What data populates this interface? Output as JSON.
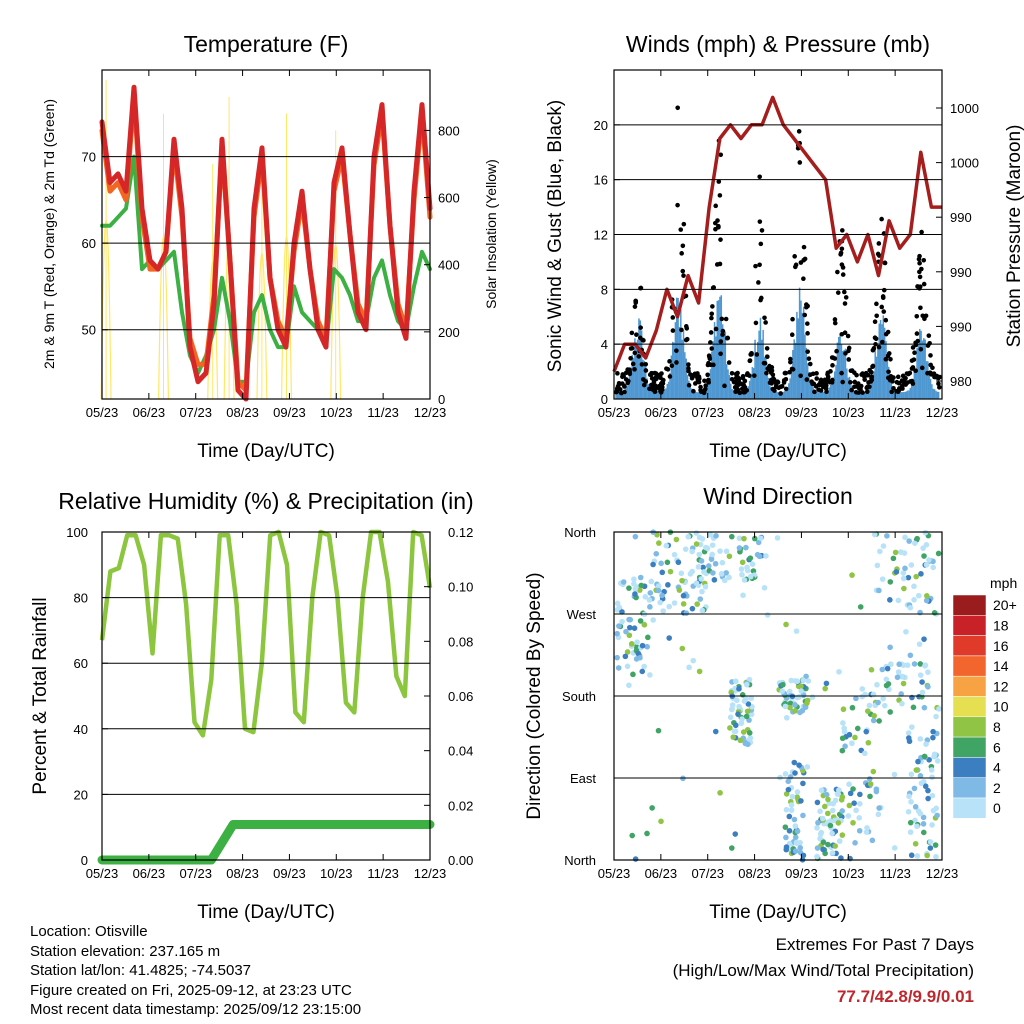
{
  "panels": {
    "temperature": {
      "title": "Temperature (F)",
      "ylabel_left": "2m & 9m T (Red, Orange) & 2m Td (Green)",
      "ylabel_right": "Solar Insolation (Yellow)",
      "xlabel": "Time (Day/UTC)"
    },
    "winds": {
      "title": "Winds (mph) & Pressure (mb)",
      "ylabel_left": "Sonic Wind & Gust (Blue, Black)",
      "ylabel_right": "Station Pressure (Maroon)",
      "xlabel": "Time (Day/UTC)"
    },
    "humidity": {
      "title": "Relative Humidity (%) & Precipitation (in)",
      "ylabel_left": "Percent & Total Rainfall",
      "xlabel": "Time (Day/UTC)"
    },
    "direction": {
      "title": "Wind Direction",
      "ylabel_left": "Direction (Colored By Speed)",
      "xlabel": "Time (Day/UTC)"
    }
  },
  "info": {
    "location": "Location: Otisville",
    "elevation": "Station elevation: 237.165 m",
    "latlon": "Station lat/lon: 41.4825; -74.5037",
    "created": "Figure created on Fri, 2025-09-12, at 23:23 UTC",
    "recent": "Most recent data timestamp: 2025/09/12 23:15:00"
  },
  "extremes": {
    "line1": "Extremes For Past 7 Days",
    "line2": "(High/Low/Max Wind/Total Precipitation)",
    "values": "77.7/42.8/9.9/0.01"
  },
  "chart_data": [
    {
      "type": "line",
      "title": "Temperature (F)",
      "x_ticks": [
        "05/23",
        "06/23",
        "07/23",
        "08/23",
        "09/23",
        "10/23",
        "11/23",
        "12/23"
      ],
      "ylim": [
        42,
        80
      ],
      "y_ticks": [
        "50",
        "60",
        "70"
      ],
      "y2lim": [
        0,
        980
      ],
      "y2_ticks": [
        "0",
        "200",
        "400",
        "600",
        "800"
      ],
      "series": [
        {
          "name": "2m T",
          "color": "#d62728",
          "values": [
            74,
            67,
            68,
            66,
            78,
            64,
            58,
            57,
            59,
            72,
            64,
            48,
            44,
            45,
            53,
            72,
            58,
            43,
            42,
            64,
            71,
            56,
            50,
            48,
            60,
            66,
            57,
            50,
            48,
            67,
            71,
            61,
            52,
            50,
            70,
            76,
            62,
            52,
            49,
            66,
            76,
            64
          ]
        },
        {
          "name": "9m T",
          "color": "#f26522",
          "values": [
            73,
            66,
            67,
            65,
            77,
            63,
            57,
            57,
            59,
            71,
            63,
            49,
            46,
            46,
            54,
            71,
            58,
            44,
            43,
            63,
            70,
            56,
            51,
            49,
            59,
            65,
            57,
            51,
            49,
            66,
            70,
            61,
            53,
            51,
            69,
            75,
            62,
            53,
            50,
            65,
            75,
            63
          ]
        },
        {
          "name": "2m Td",
          "color": "#3cb043",
          "values": [
            62,
            62,
            63,
            64,
            70,
            57,
            58,
            57,
            58,
            59,
            52,
            47,
            45,
            47,
            50,
            56,
            51,
            44,
            44,
            52,
            54,
            50,
            48,
            48,
            55,
            52,
            51,
            50,
            48,
            57,
            56,
            54,
            51,
            51,
            56,
            58,
            54,
            51,
            50,
            55,
            59,
            57
          ]
        },
        {
          "name": "Solar Insolation",
          "color": "#ffe766",
          "values": [
            950,
            0,
            0,
            0,
            0,
            0,
            0,
            850,
            0,
            0,
            0,
            0,
            0,
            700,
            0,
            900,
            0,
            0,
            0,
            750,
            0,
            0,
            850,
            0,
            0,
            0,
            0,
            0,
            800,
            0,
            0,
            0,
            0,
            0,
            0,
            0,
            0,
            0,
            0,
            0
          ]
        }
      ]
    },
    {
      "type": "scatter",
      "title": "Winds (mph) & Pressure (mb)",
      "x_ticks": [
        "05/23",
        "06/23",
        "07/23",
        "08/23",
        "09/23",
        "10/23",
        "11/23",
        "12/23"
      ],
      "ylim": [
        0,
        24
      ],
      "y_ticks": [
        "0",
        "4",
        "8",
        "12",
        "16",
        "20"
      ],
      "y2_ticks": [
        "980",
        "990",
        "990",
        "990",
        "1000",
        "1000"
      ],
      "series": [
        {
          "name": "Sonic Wind",
          "color": "#4f97d1",
          "daily_peak": [
            6,
            8,
            9,
            6,
            9,
            5,
            7,
            5
          ]
        },
        {
          "name": "Gust",
          "color": "#000000",
          "daily_peak": [
            9,
            22,
            19,
            15,
            20,
            12,
            13,
            12
          ]
        },
        {
          "name": "Station Pressure",
          "color": "#a51d1d",
          "values": [
            2,
            4,
            4,
            3,
            5,
            8,
            6,
            9,
            7,
            14,
            19,
            20,
            19,
            20,
            20,
            22,
            20,
            19,
            18,
            17,
            16,
            11,
            12,
            10,
            12,
            9,
            13,
            11,
            12,
            18,
            14,
            14
          ]
        }
      ]
    },
    {
      "type": "line",
      "title": "Relative Humidity (%) & Precipitation (in)",
      "x_ticks": [
        "05/23",
        "06/23",
        "07/23",
        "08/23",
        "09/23",
        "10/23",
        "11/23",
        "12/23"
      ],
      "ylim": [
        0,
        100
      ],
      "y_ticks": [
        "0",
        "20",
        "40",
        "60",
        "80",
        "100"
      ],
      "y2lim": [
        0,
        0.12
      ],
      "y2_ticks": [
        "0.00",
        "0.02",
        "0.04",
        "0.06",
        "0.08",
        "0.10",
        "0.12"
      ],
      "series": [
        {
          "name": "Relative Humidity",
          "color": "#8cc63f",
          "values": [
            67,
            88,
            89,
            99,
            99,
            90,
            63,
            99,
            99,
            98,
            78,
            42,
            38,
            55,
            99,
            99,
            78,
            40,
            39,
            60,
            99,
            100,
            90,
            45,
            42,
            80,
            100,
            99,
            80,
            48,
            45,
            80,
            100,
            100,
            85,
            56,
            50,
            100,
            99,
            83
          ]
        },
        {
          "name": "Total Precipitation",
          "color": "#3cb043",
          "values": [
            0,
            0,
            0,
            0,
            0,
            0,
            0.013,
            0.013,
            0.013,
            0.013,
            0.013,
            0.013,
            0.013,
            0.013,
            0.013,
            0.013
          ]
        }
      ]
    },
    {
      "type": "scatter",
      "title": "Wind Direction",
      "x_ticks": [
        "05/23",
        "06/23",
        "07/23",
        "08/23",
        "09/23",
        "10/23",
        "11/23",
        "12/23"
      ],
      "y_ticks": [
        "North",
        "East",
        "South",
        "West",
        "North"
      ],
      "colorbar_title": "mph",
      "colorbar": [
        {
          "label": "20+",
          "color": "#9b1c1c"
        },
        {
          "label": "18",
          "color": "#c82127"
        },
        {
          "label": "16",
          "color": "#e03b2a"
        },
        {
          "label": "14",
          "color": "#f2662d"
        },
        {
          "label": "12",
          "color": "#f7a243"
        },
        {
          "label": "10",
          "color": "#e6df51"
        },
        {
          "label": "8",
          "color": "#8fc444"
        },
        {
          "label": "6",
          "color": "#3fa464"
        },
        {
          "label": "4",
          "color": "#3c7fc0"
        },
        {
          "label": "2",
          "color": "#7fbae6"
        },
        {
          "label": "0",
          "color": "#b7e2f8"
        }
      ]
    }
  ]
}
